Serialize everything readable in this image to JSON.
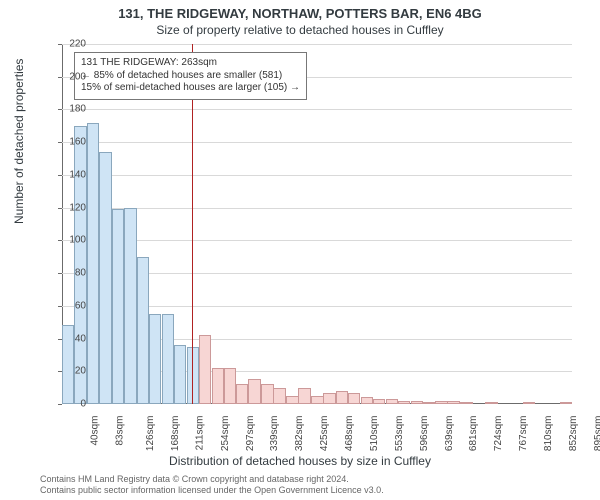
{
  "title_line1": "131, THE RIDGEWAY, NORTHAW, POTTERS BAR, EN6 4BG",
  "title_line2": "Size of property relative to detached houses in Cuffley",
  "ylabel": "Number of detached properties",
  "xlabel": "Distribution of detached houses by size in Cuffley",
  "chart": {
    "type": "histogram",
    "background_color": "#ffffff",
    "grid_color": "#d9d9d9",
    "axis_color": "#6b6b6b",
    "ylim": [
      0,
      220
    ],
    "ytick_step": 20,
    "yticks": [
      0,
      20,
      40,
      60,
      80,
      100,
      120,
      140,
      160,
      180,
      200,
      220
    ],
    "x_data_min": 40,
    "x_data_max": 916,
    "xticks": [
      40,
      83,
      126,
      168,
      211,
      254,
      297,
      339,
      382,
      425,
      468,
      510,
      553,
      596,
      639,
      681,
      724,
      767,
      810,
      852,
      895
    ],
    "xtick_unit": "sqm",
    "bin_width_sqm": 21.3,
    "bars": [
      {
        "x": 40,
        "h": 48
      },
      {
        "x": 61,
        "h": 170
      },
      {
        "x": 83,
        "h": 172
      },
      {
        "x": 104,
        "h": 154
      },
      {
        "x": 126,
        "h": 119
      },
      {
        "x": 147,
        "h": 120
      },
      {
        "x": 168,
        "h": 90
      },
      {
        "x": 189,
        "h": 55
      },
      {
        "x": 211,
        "h": 55
      },
      {
        "x": 232,
        "h": 36
      },
      {
        "x": 254,
        "h": 35
      },
      {
        "x": 275,
        "h": 42
      },
      {
        "x": 297,
        "h": 22
      },
      {
        "x": 318,
        "h": 22
      },
      {
        "x": 339,
        "h": 12
      },
      {
        "x": 360,
        "h": 15
      },
      {
        "x": 382,
        "h": 12
      },
      {
        "x": 403,
        "h": 10
      },
      {
        "x": 425,
        "h": 5
      },
      {
        "x": 446,
        "h": 10
      },
      {
        "x": 468,
        "h": 5
      },
      {
        "x": 489,
        "h": 7
      },
      {
        "x": 510,
        "h": 8
      },
      {
        "x": 531,
        "h": 7
      },
      {
        "x": 553,
        "h": 4
      },
      {
        "x": 574,
        "h": 3
      },
      {
        "x": 596,
        "h": 3
      },
      {
        "x": 617,
        "h": 2
      },
      {
        "x": 639,
        "h": 2
      },
      {
        "x": 660,
        "h": 1
      },
      {
        "x": 681,
        "h": 2
      },
      {
        "x": 702,
        "h": 2
      },
      {
        "x": 724,
        "h": 1
      },
      {
        "x": 745,
        "h": 0
      },
      {
        "x": 767,
        "h": 1
      },
      {
        "x": 788,
        "h": 0
      },
      {
        "x": 810,
        "h": 0
      },
      {
        "x": 831,
        "h": 1
      },
      {
        "x": 852,
        "h": 0
      },
      {
        "x": 873,
        "h": 0
      },
      {
        "x": 895,
        "h": 1
      }
    ],
    "bar_color_left": "#cfe4f5",
    "bar_color_right": "#f7d6d4",
    "bar_border": "#8aa7bd",
    "bar_border_right": "#c99",
    "marker": {
      "x_sqm": 263,
      "color": "#b02222"
    }
  },
  "annotation": {
    "line1": "131 THE RIDGEWAY: 263sqm",
    "line2": "← 85% of detached houses are smaller (581)",
    "line3": "15% of semi-detached houses are larger (105) →",
    "border_color": "#777777",
    "font_size": 10
  },
  "footer_line1": "Contains HM Land Registry data © Crown copyright and database right 2024.",
  "footer_line2": "Contains public sector information licensed under the Open Government Licence v3.0."
}
